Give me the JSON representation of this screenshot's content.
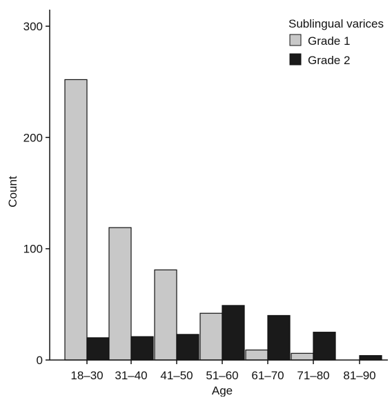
{
  "chart_data": {
    "type": "bar",
    "title": "",
    "xlabel": "Age",
    "ylabel": "Count",
    "categories": [
      "18–30",
      "31–40",
      "41–50",
      "51–60",
      "61–70",
      "71–80",
      "81–90"
    ],
    "series": [
      {
        "name": "Grade 1",
        "values": [
          252,
          119,
          81,
          42,
          9,
          6,
          0
        ],
        "color": "#c8c8c8"
      },
      {
        "name": "Grade 2",
        "values": [
          20,
          21,
          23,
          49,
          40,
          25,
          4
        ],
        "color": "#1a1a1a"
      }
    ],
    "ylim": [
      0,
      300
    ],
    "yticks": [
      "0",
      "100",
      "200",
      "300"
    ],
    "legend": {
      "title": "Sublingual varices",
      "placement": "top-right"
    },
    "grid": false
  }
}
